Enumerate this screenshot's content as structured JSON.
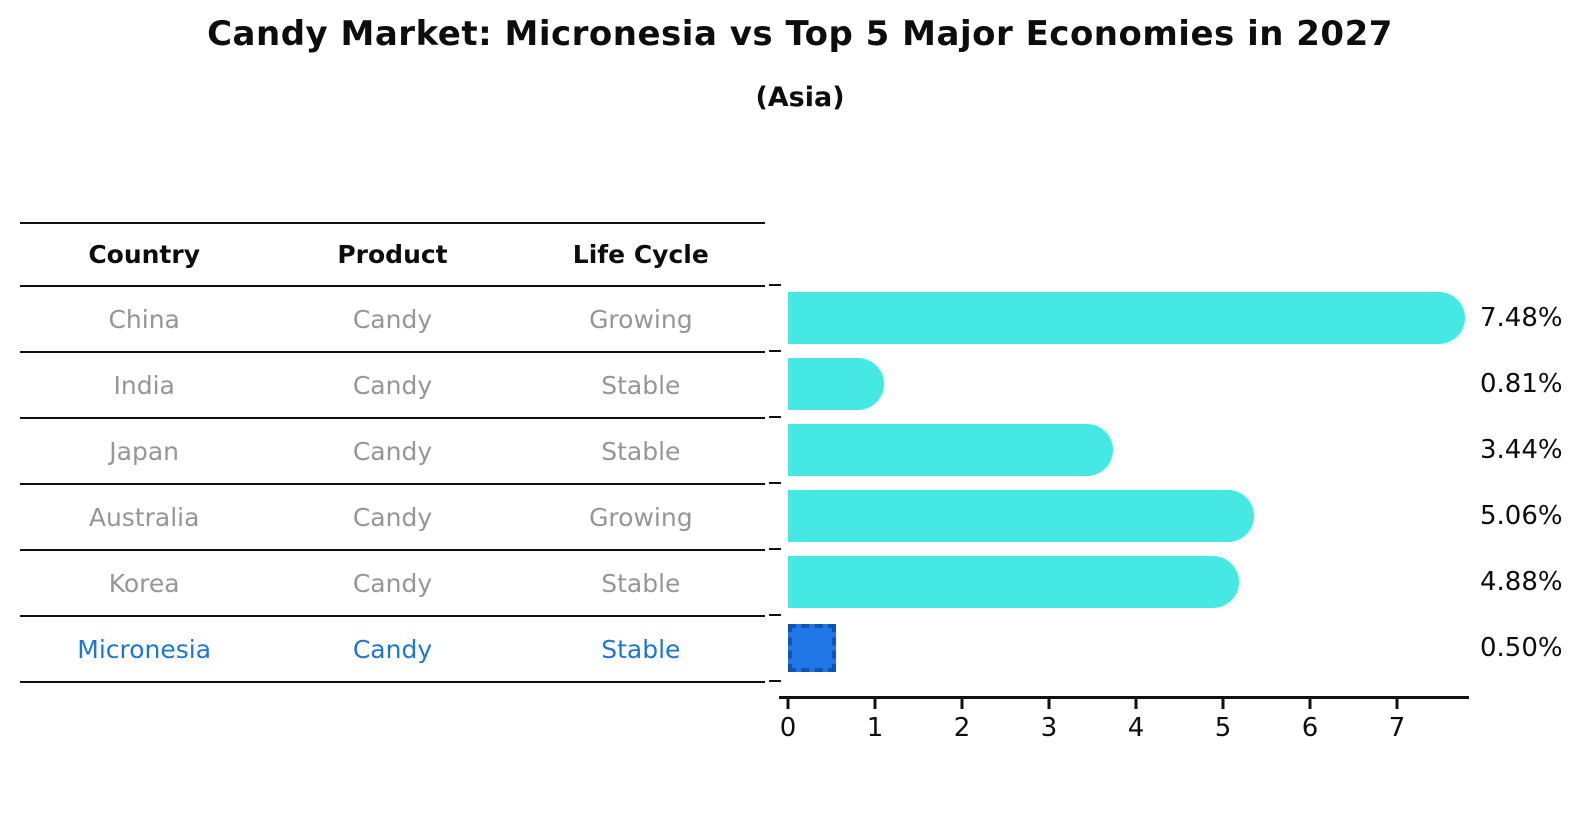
{
  "title": "Candy Market: Micronesia vs Top 5 Major Economies in 2027",
  "subtitle": "(Asia)",
  "table": {
    "headers": [
      "Country",
      "Product",
      "Life Cycle"
    ],
    "rows": [
      {
        "country": "China",
        "product": "Candy",
        "life_cycle": "Growing",
        "highlight": false
      },
      {
        "country": "India",
        "product": "Candy",
        "life_cycle": "Stable",
        "highlight": false
      },
      {
        "country": "Japan",
        "product": "Candy",
        "life_cycle": "Stable",
        "highlight": false
      },
      {
        "country": "Australia",
        "product": "Candy",
        "life_cycle": "Growing",
        "highlight": false
      },
      {
        "country": "Korea",
        "product": "Candy",
        "life_cycle": "Stable",
        "highlight": false
      },
      {
        "country": "Micronesia",
        "product": "Candy",
        "life_cycle": "Stable",
        "highlight": true
      }
    ]
  },
  "chart_data": {
    "type": "bar",
    "orientation": "horizontal",
    "title": "Candy Market: Micronesia vs Top 5 Major Economies in 2027",
    "subtitle": "(Asia)",
    "categories": [
      "China",
      "India",
      "Japan",
      "Australia",
      "Korea",
      "Micronesia"
    ],
    "values": [
      7.48,
      0.81,
      3.44,
      5.06,
      4.88,
      0.5
    ],
    "value_labels": [
      "7.48%",
      "0.81%",
      "3.44%",
      "5.06%",
      "4.88%",
      "0.50%"
    ],
    "xlabel": "",
    "ylabel": "",
    "xlim": [
      0,
      7.9
    ],
    "x_ticks": [
      0,
      1,
      2,
      3,
      4,
      5,
      6,
      7
    ],
    "grid": false,
    "legend": "none",
    "highlight_index": 5,
    "bar_color": "#46e8e3",
    "highlight_bar_color": "#2176e5",
    "highlight_border_color": "#1253b0",
    "highlight_text_color": "#1d76cf",
    "value_suffix": "%"
  }
}
